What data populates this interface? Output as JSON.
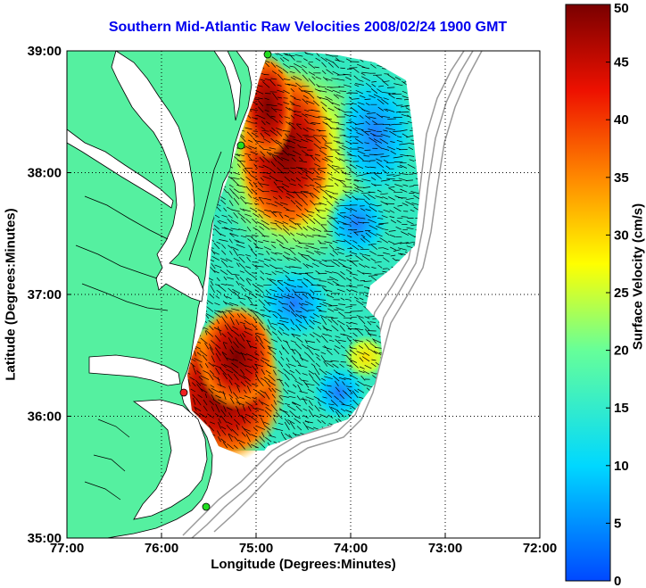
{
  "chart_data": {
    "type": "map",
    "title": "Southern Mid-Atlantic Raw Velocities 2008/02/24 1900 GMT",
    "xlabel": "Longitude (Degrees:Minutes)",
    "ylabel": "Latitude (Degrees:Minutes)",
    "x_ticks": [
      "77:00",
      "76:00",
      "75:00",
      "74:00",
      "73:00",
      "72:00"
    ],
    "y_ticks": [
      "39:00",
      "38:00",
      "37:00",
      "36:00",
      "35:00"
    ],
    "xlim": [
      -77,
      -72
    ],
    "ylim": [
      35,
      39
    ],
    "grid": true,
    "colorbar": {
      "label": "Surface Velocity (cm/s)",
      "range": [
        0,
        50
      ],
      "ticks": [
        "0",
        "5",
        "10",
        "15",
        "20",
        "25",
        "30",
        "35",
        "40",
        "45",
        "50"
      ]
    },
    "colors": {
      "land": "#55f0a0",
      "water": "#ffffff",
      "bathymetry": "#9a9a9a",
      "station_green": "#22dd22",
      "station_red": "#ee2222"
    }
  }
}
